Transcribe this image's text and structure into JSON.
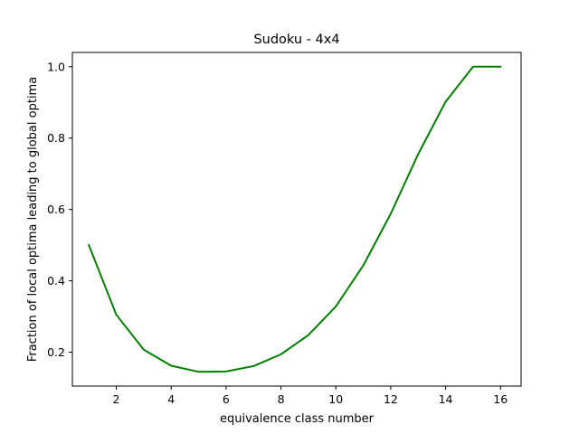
{
  "chart_data": {
    "type": "line",
    "title": "Sudoku - 4x4",
    "xlabel": "equivalence class number",
    "ylabel": "Fraction of local optima leading to global optima",
    "xlim": [
      0.4,
      16.75
    ],
    "ylim": [
      0.105,
      1.04
    ],
    "xticks": [
      2,
      4,
      6,
      8,
      10,
      12,
      14,
      16
    ],
    "yticks": [
      0.2,
      0.4,
      0.6,
      0.8,
      1.0
    ],
    "xtick_labels": [
      "2",
      "4",
      "6",
      "8",
      "10",
      "12",
      "14",
      "16"
    ],
    "ytick_labels": [
      "0.2",
      "0.4",
      "0.6",
      "0.8",
      "1.0"
    ],
    "grid": false,
    "series": [
      {
        "color": "#008000",
        "x": [
          1,
          2,
          3,
          4,
          5,
          6,
          7,
          8,
          9,
          10,
          11,
          12,
          13,
          14,
          15,
          16
        ],
        "y": [
          0.5,
          0.305,
          0.207,
          0.162,
          0.145,
          0.146,
          0.161,
          0.194,
          0.248,
          0.328,
          0.443,
          0.588,
          0.755,
          0.902,
          1.0,
          1.0
        ]
      }
    ]
  }
}
